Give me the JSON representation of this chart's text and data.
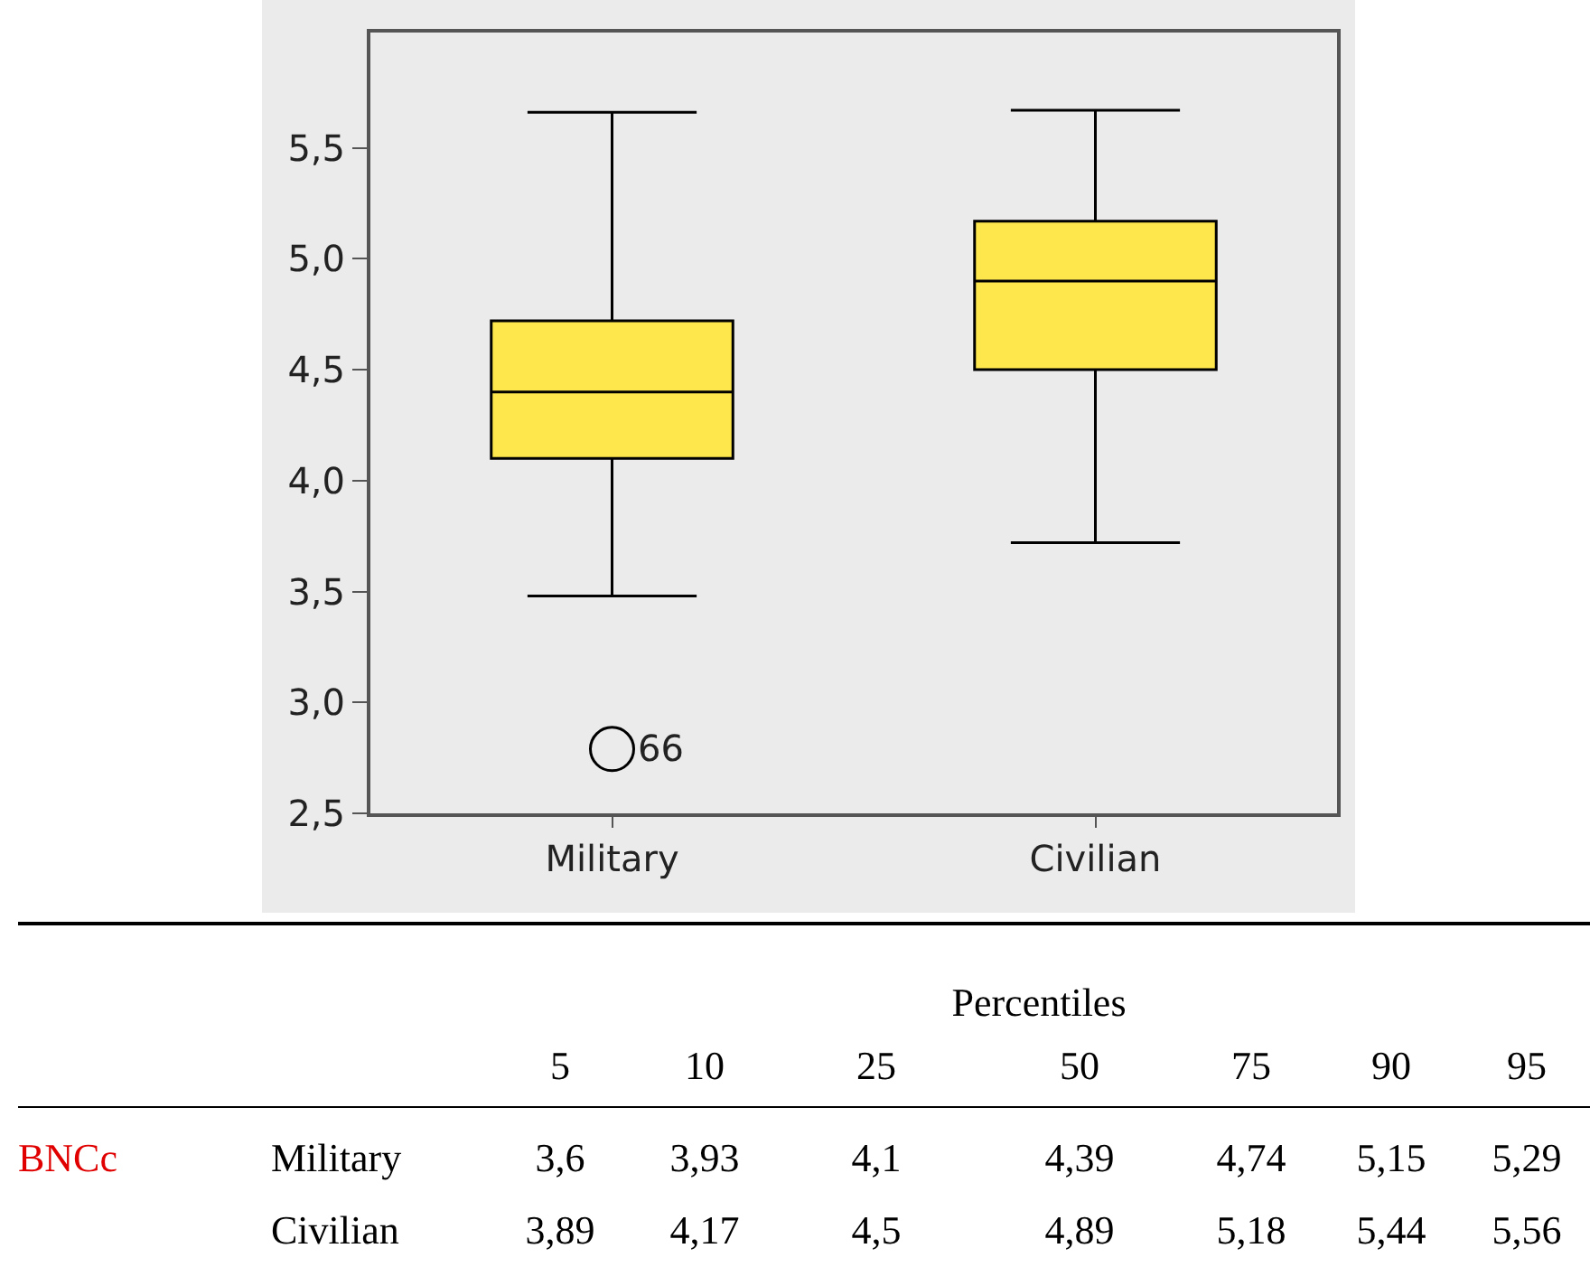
{
  "chart_data": {
    "type": "box",
    "categories": [
      "Military",
      "Civilian"
    ],
    "color": "#fde74c",
    "boxes": [
      {
        "low": 3.48,
        "q1": 4.1,
        "median": 4.4,
        "q3": 4.72,
        "high": 5.66,
        "outliers": [
          2.79
        ]
      },
      {
        "low": 3.72,
        "q1": 4.5,
        "median": 4.9,
        "q3": 5.17,
        "high": 5.67
      }
    ],
    "ylim": [
      2.5,
      6.02
    ],
    "yticks": [
      {
        "value": 2.5,
        "label": "2,5"
      },
      {
        "value": 3,
        "label": "3,0"
      },
      {
        "value": 3.5,
        "label": "3,5"
      },
      {
        "value": 4,
        "label": "4,0"
      },
      {
        "value": 4.5,
        "label": "4,5"
      },
      {
        "value": 5,
        "label": "5,0"
      },
      {
        "value": 5.5,
        "label": "5,5"
      }
    ],
    "annotations": [
      "66",
      "Percentiles",
      "5",
      "10",
      "25",
      "50",
      "75",
      "90",
      "95",
      "BNCc",
      "Military",
      "3,6",
      "3,93",
      "4,1",
      "4,39",
      "4,74",
      "5,15",
      "5,29",
      "Civilian",
      "3,89",
      "4,17",
      "4,5",
      "4,89",
      "5,18",
      "5,44",
      "5,56"
    ]
  }
}
